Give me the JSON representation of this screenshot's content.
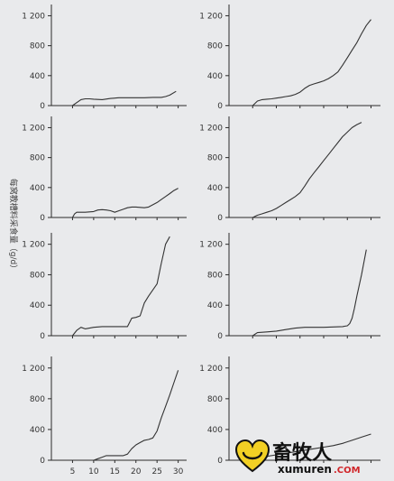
{
  "figure": {
    "y_axis_label": "每窝教槽料采食量（g/d）"
  },
  "watermark": {
    "cn": "畜牧人",
    "en": "xumuren",
    "com": ".COM"
  },
  "chart_data": [
    {
      "type": "line",
      "position": "row1-left",
      "ylim": [
        0,
        1350
      ],
      "yticks": [
        "0",
        "400",
        "800",
        "1 200"
      ],
      "xlim": [
        0,
        32
      ],
      "xticks": [],
      "x": [
        5,
        6,
        7,
        8,
        9,
        10,
        12,
        14,
        16,
        18,
        20,
        22,
        24,
        26,
        27,
        28,
        29.5
      ],
      "y": [
        0,
        40,
        80,
        90,
        90,
        85,
        80,
        95,
        105,
        105,
        105,
        105,
        110,
        110,
        120,
        140,
        190
      ]
    },
    {
      "type": "line",
      "position": "row1-right",
      "ylim": [
        0,
        1350
      ],
      "yticks": [
        "0",
        "400",
        "800",
        "1 200"
      ],
      "xlim": [
        0,
        32
      ],
      "xticks": [],
      "x": [
        5,
        6,
        7,
        8,
        9,
        10,
        11,
        12,
        13,
        14,
        15,
        16,
        17,
        18,
        19,
        20,
        21,
        22,
        23,
        24,
        25,
        26,
        27,
        28,
        29,
        30
      ],
      "y": [
        0,
        60,
        80,
        85,
        90,
        100,
        110,
        120,
        130,
        150,
        180,
        230,
        270,
        290,
        310,
        330,
        360,
        400,
        450,
        540,
        640,
        740,
        840,
        960,
        1070,
        1150
      ]
    },
    {
      "type": "line",
      "position": "row2-left",
      "ylim": [
        0,
        1350
      ],
      "yticks": [
        "0",
        "400",
        "800",
        "1 200"
      ],
      "xlim": [
        0,
        32
      ],
      "xticks": [],
      "x": [
        5,
        5.5,
        6,
        8,
        10,
        11,
        12,
        13,
        14,
        15,
        16,
        17,
        18,
        19,
        20,
        21,
        22,
        23,
        24,
        25,
        26,
        27,
        28,
        29,
        30
      ],
      "y": [
        0,
        50,
        70,
        70,
        80,
        100,
        105,
        100,
        90,
        70,
        90,
        110,
        130,
        140,
        140,
        135,
        130,
        140,
        170,
        200,
        240,
        280,
        320,
        360,
        390
      ]
    },
    {
      "type": "line",
      "position": "row2-right",
      "ylim": [
        0,
        1350
      ],
      "yticks": [
        "0",
        "400",
        "800",
        "1 200"
      ],
      "xlim": [
        0,
        32
      ],
      "xticks": [],
      "x": [
        5,
        6,
        7,
        8,
        9,
        10,
        11,
        12,
        13,
        14,
        15,
        16,
        17,
        18,
        19,
        20,
        21,
        22,
        23,
        24,
        25,
        26,
        27,
        28
      ],
      "y": [
        0,
        30,
        50,
        70,
        90,
        120,
        160,
        200,
        240,
        280,
        330,
        420,
        520,
        600,
        680,
        760,
        840,
        920,
        1000,
        1080,
        1140,
        1200,
        1240,
        1270
      ]
    },
    {
      "type": "line",
      "position": "row3-left",
      "ylim": [
        0,
        1350
      ],
      "yticks": [
        "0",
        "400",
        "800",
        "1 200"
      ],
      "xlim": [
        0,
        32
      ],
      "xticks": [],
      "x": [
        5,
        6,
        7,
        8,
        9,
        10,
        12,
        14,
        16,
        18,
        19,
        20,
        21,
        22,
        23,
        24,
        25,
        26,
        27,
        28
      ],
      "y": [
        0,
        70,
        110,
        90,
        100,
        110,
        120,
        120,
        120,
        120,
        230,
        240,
        260,
        430,
        520,
        600,
        680,
        950,
        1200,
        1300
      ]
    },
    {
      "type": "line",
      "position": "row3-right",
      "ylim": [
        0,
        1350
      ],
      "yticks": [
        "0",
        "400",
        "800",
        "1 200"
      ],
      "xlim": [
        0,
        32
      ],
      "xticks": [],
      "x": [
        5,
        6,
        8,
        10,
        12,
        14,
        16,
        18,
        20,
        22,
        24,
        25,
        25.5,
        26,
        26.5,
        27,
        28,
        29
      ],
      "y": [
        0,
        40,
        50,
        60,
        80,
        100,
        110,
        110,
        110,
        115,
        120,
        130,
        160,
        230,
        360,
        520,
        800,
        1130
      ]
    },
    {
      "type": "line",
      "position": "row4-left",
      "ylim": [
        0,
        1350
      ],
      "yticks": [
        "0",
        "400",
        "800",
        "1 200"
      ],
      "xlim": [
        0,
        32
      ],
      "xticks": [
        "5",
        "10",
        "15",
        "20",
        "25",
        "30"
      ],
      "x": [
        10,
        11,
        12,
        13,
        14,
        15,
        16,
        17,
        18,
        19,
        20,
        21,
        22,
        23,
        24,
        25,
        26,
        27,
        28,
        29,
        30
      ],
      "y": [
        0,
        20,
        40,
        60,
        60,
        60,
        60,
        60,
        80,
        150,
        200,
        230,
        260,
        270,
        290,
        380,
        550,
        700,
        850,
        1010,
        1170
      ]
    },
    {
      "type": "line",
      "position": "row4-right",
      "ylim": [
        0,
        1350
      ],
      "yticks": [
        "0",
        "400",
        "800",
        "1 200"
      ],
      "xlim": [
        0,
        32
      ],
      "xticks": [],
      "x": [
        5,
        6,
        8,
        10,
        12,
        14,
        16,
        18,
        20,
        22,
        24,
        26,
        28,
        30
      ],
      "y": [
        0,
        30,
        50,
        70,
        90,
        110,
        130,
        150,
        170,
        190,
        220,
        260,
        300,
        340
      ]
    }
  ]
}
